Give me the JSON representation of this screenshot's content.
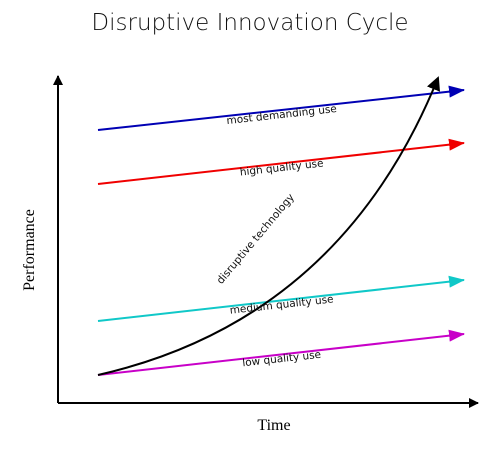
{
  "title": "Disruptive Innovation Cycle",
  "axes": {
    "x_label": "Time",
    "y_label": "Performance"
  },
  "lines": [
    {
      "label": "most demanding use"
    },
    {
      "label": "high quality use"
    },
    {
      "label": "disruptive technology"
    },
    {
      "label": "medium quality use"
    },
    {
      "label": "low quality use"
    }
  ]
}
